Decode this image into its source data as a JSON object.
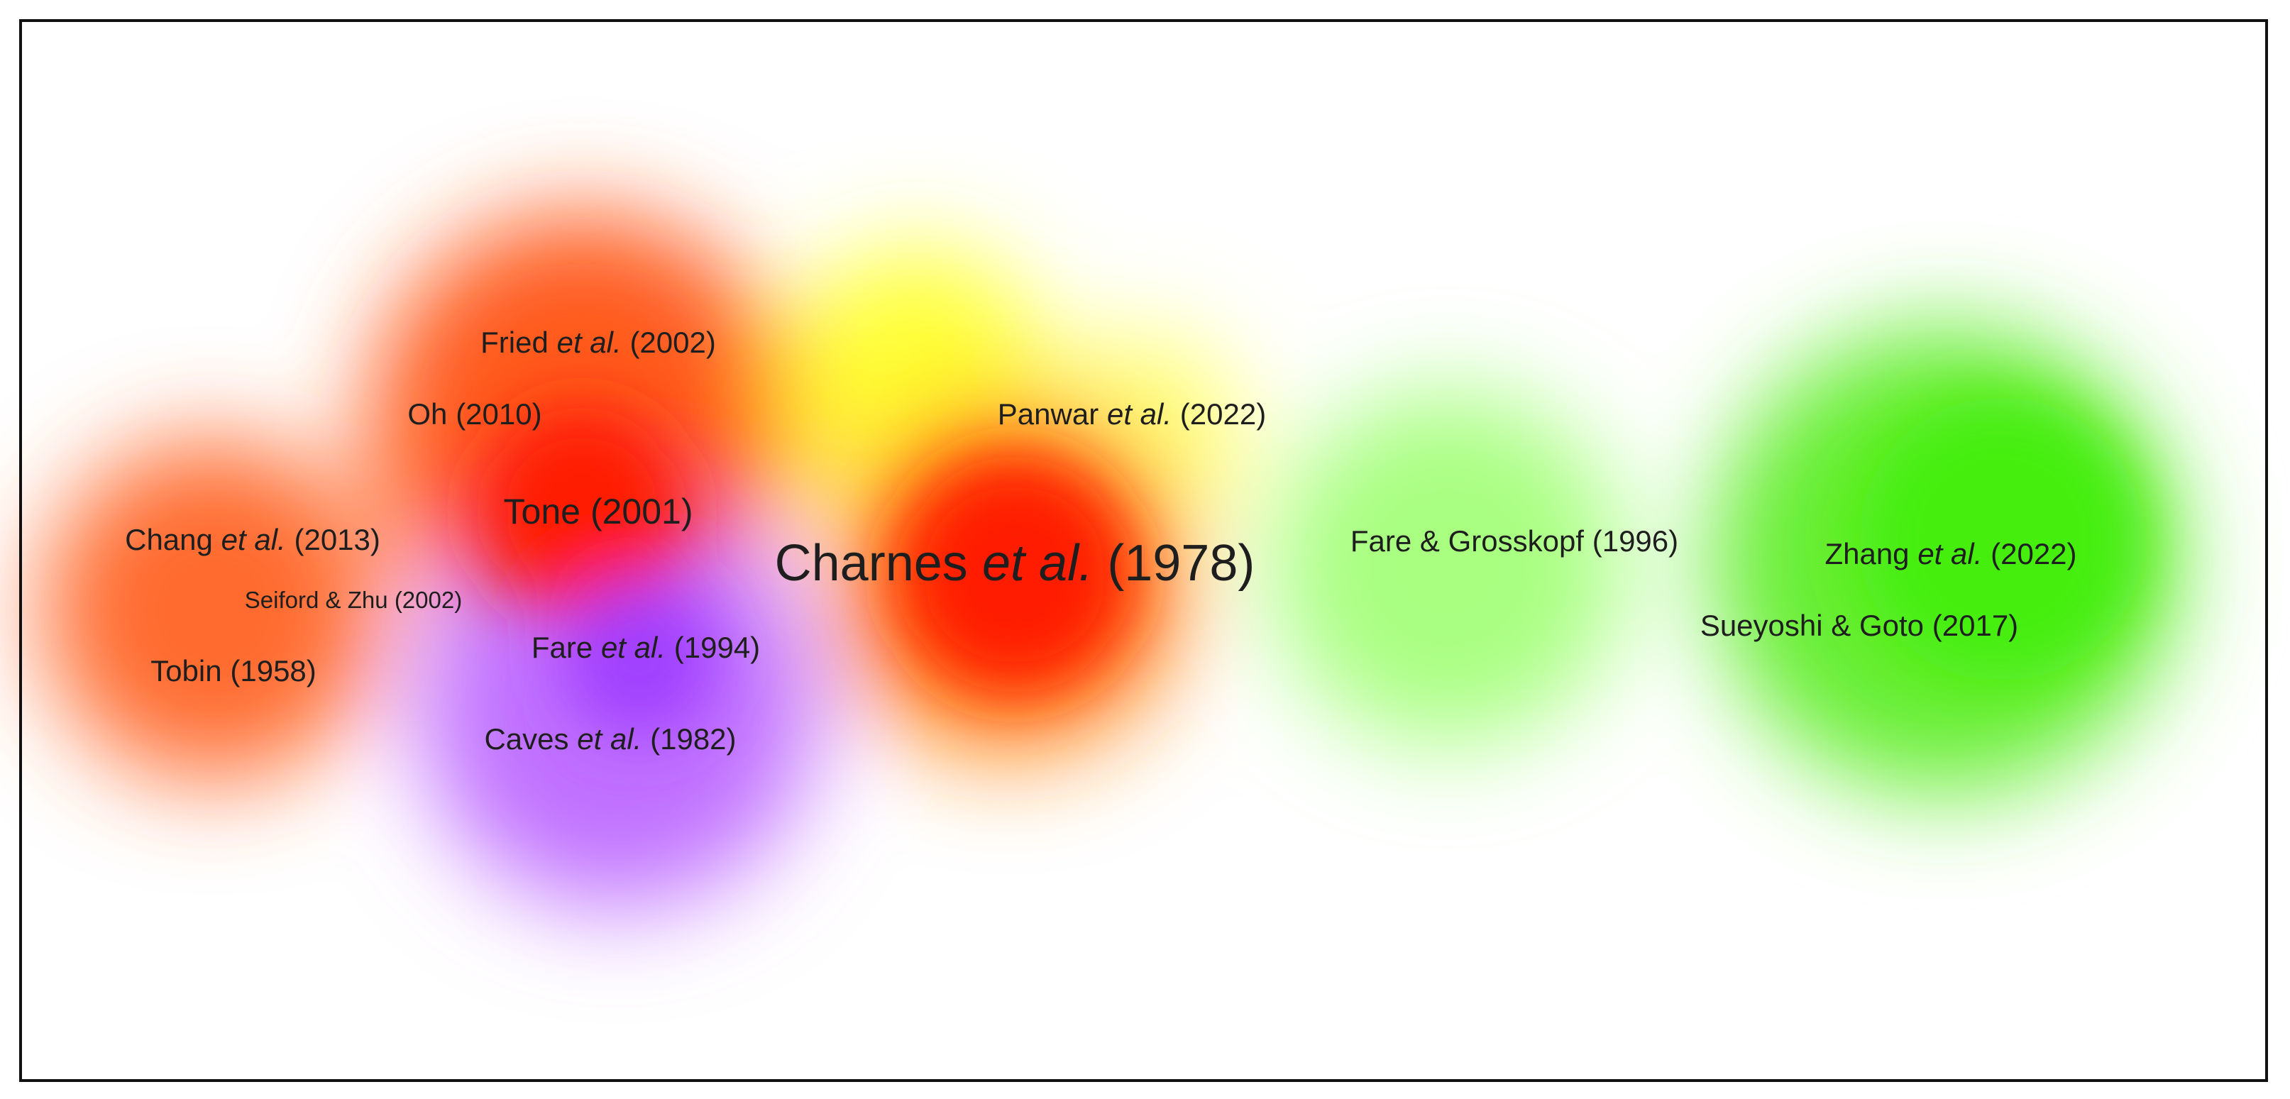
{
  "nodes": [
    {
      "parts": [
        "Fried",
        "et al.",
        "(2002)"
      ]
    },
    {
      "parts": [
        "Oh",
        "(2010)"
      ]
    },
    {
      "parts": [
        "Panwar",
        "et al.",
        "(2022)"
      ]
    },
    {
      "parts": [
        "Tone",
        "(2001)"
      ]
    },
    {
      "parts": [
        "Chang",
        "et al.",
        "(2013)"
      ]
    },
    {
      "parts": [
        "Charnes",
        "et al.",
        "(1978)"
      ]
    },
    {
      "parts": [
        "Fare & Grosskopf",
        "(1996)"
      ]
    },
    {
      "parts": [
        "Zhang",
        "et al.",
        "(2022)"
      ]
    },
    {
      "parts": [
        "Seiford & Zhu",
        "(2002)"
      ]
    },
    {
      "parts": [
        "Fare",
        "et al.",
        "(1994)"
      ]
    },
    {
      "parts": [
        "Sueyoshi & Goto",
        "(2017)"
      ]
    },
    {
      "parts": [
        "Tobin",
        "(1958)"
      ]
    },
    {
      "parts": [
        "Caves",
        "et al.",
        "(1982)"
      ]
    }
  ]
}
